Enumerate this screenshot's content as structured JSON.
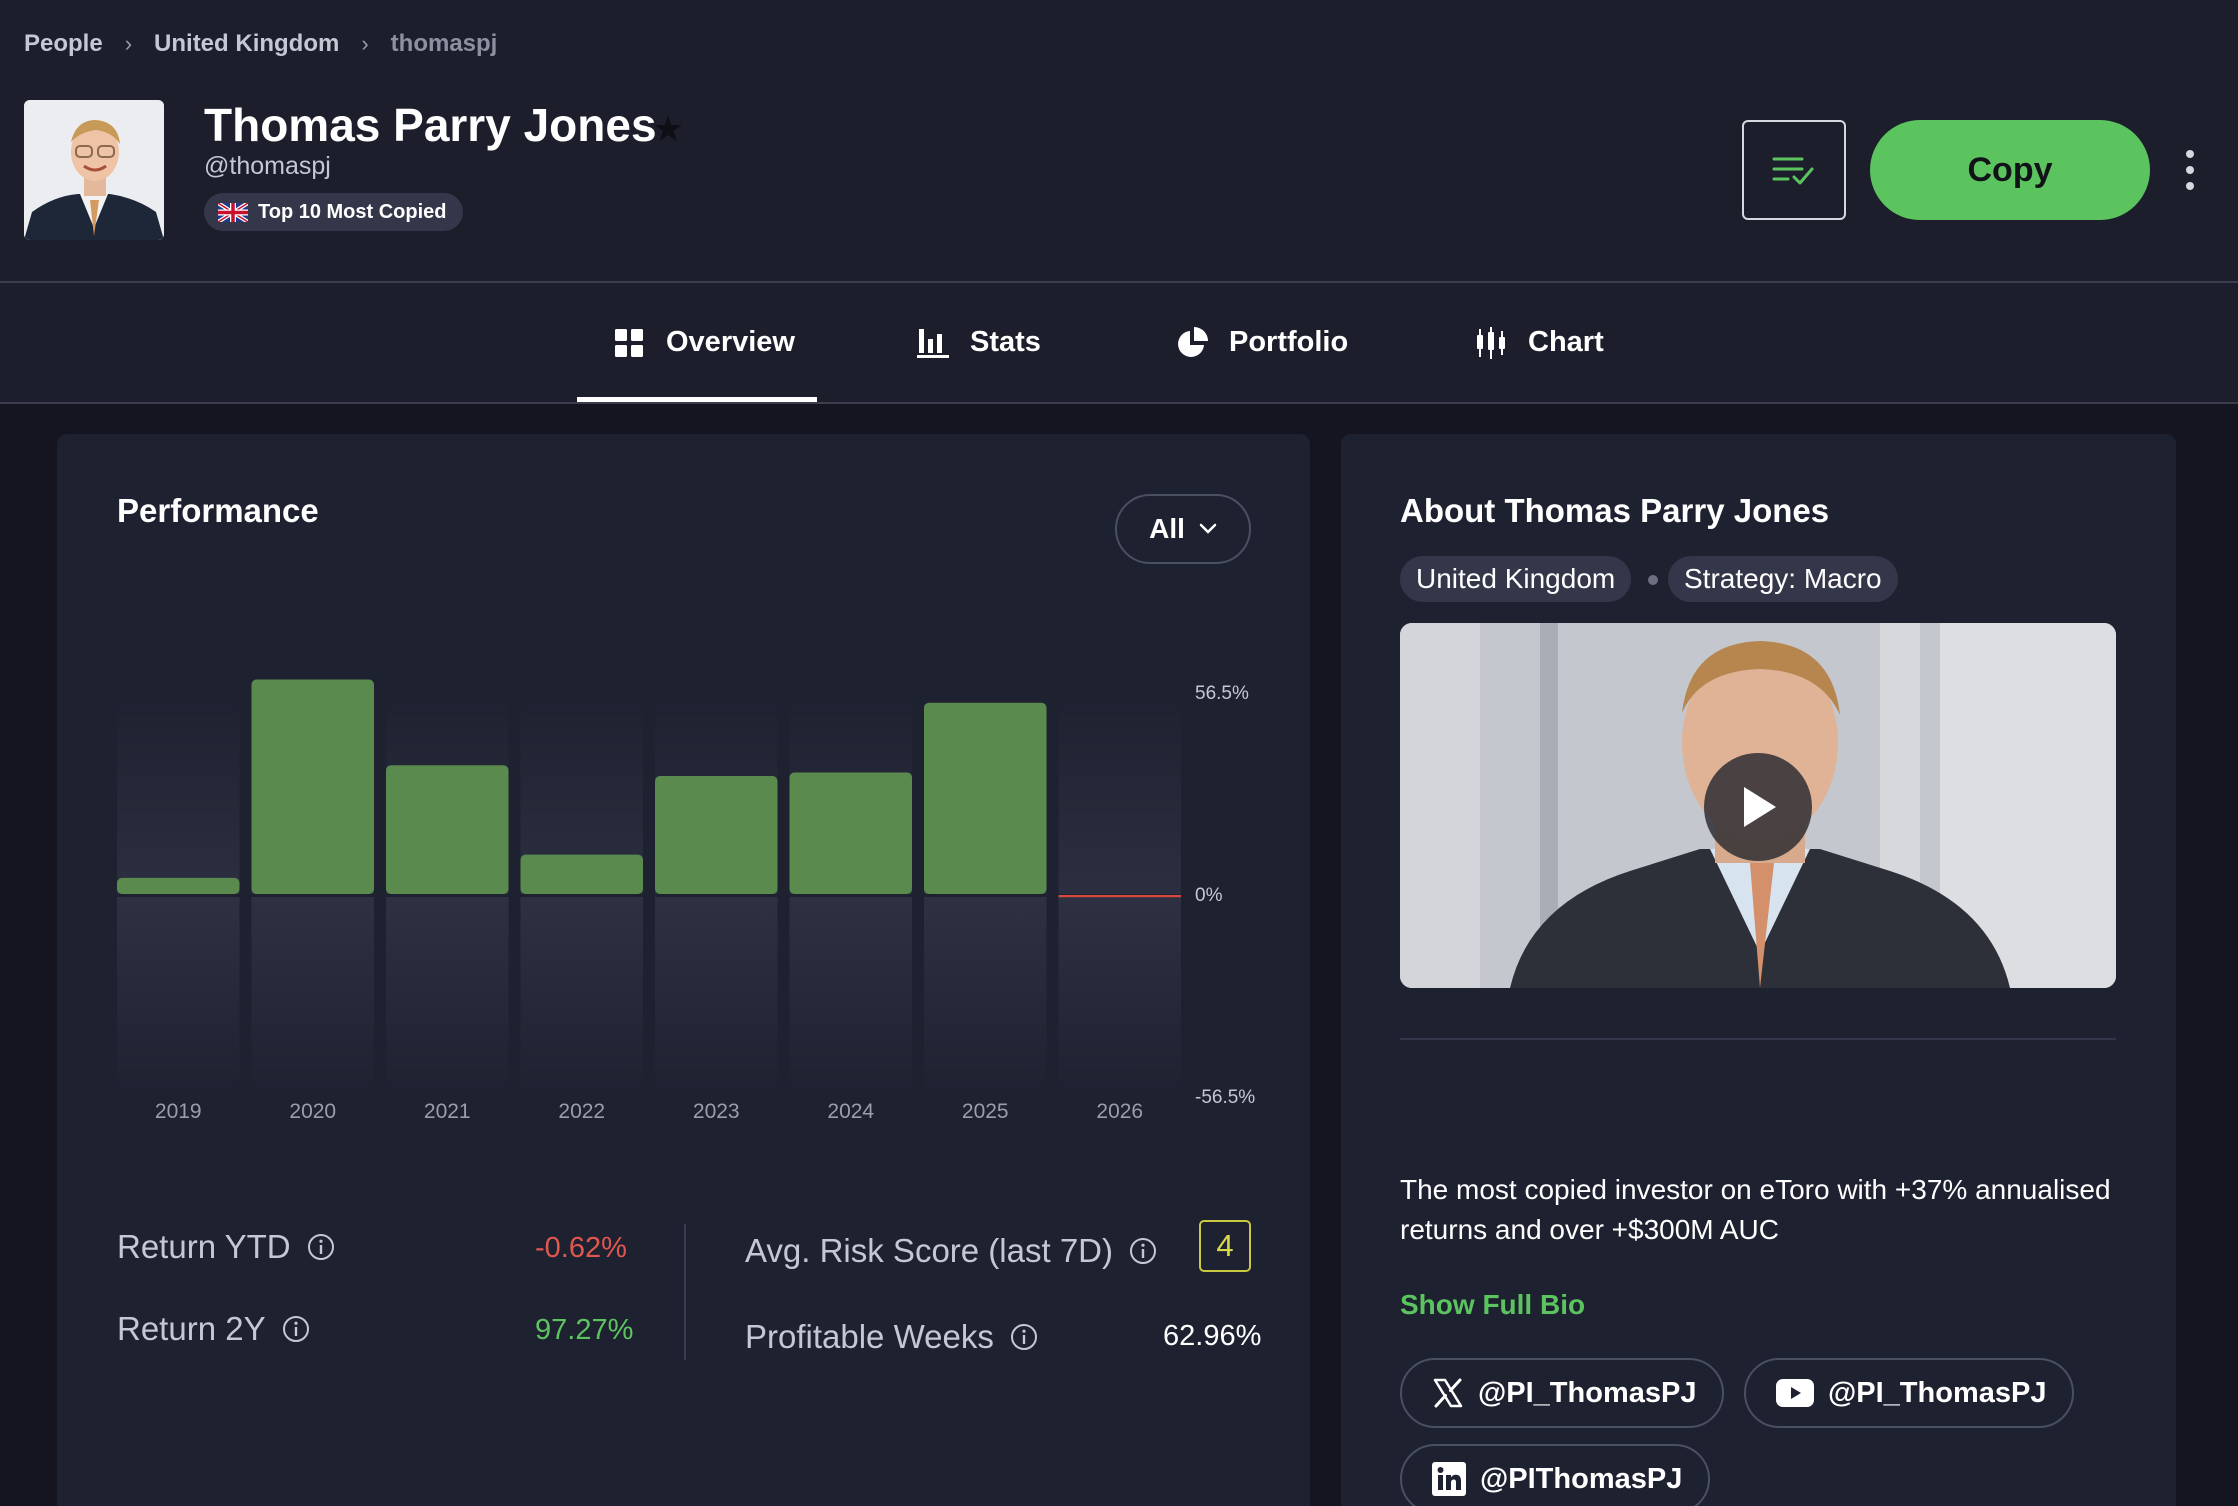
{
  "breadcrumb": {
    "items": [
      "People",
      "United Kingdom",
      "thomaspj"
    ]
  },
  "profile": {
    "name": "Thomas Parry Jones",
    "handle": "@thomaspj",
    "badge": "Top 10 Most Copied",
    "avatar_icon": "person-photo"
  },
  "actions": {
    "copy_label": "Copy",
    "watchlist_icon": "watchlist-check-icon",
    "more_icon": "kebab-menu-icon"
  },
  "tabs": [
    {
      "label": "Overview",
      "icon": "grid-icon",
      "active": true
    },
    {
      "label": "Stats",
      "icon": "bar-chart-icon",
      "active": false
    },
    {
      "label": "Portfolio",
      "icon": "pie-chart-icon",
      "active": false
    },
    {
      "label": "Chart",
      "icon": "candlestick-icon",
      "active": false
    }
  ],
  "performance": {
    "title": "Performance",
    "filter_value": "All",
    "metrics": {
      "return_ytd_label": "Return YTD",
      "return_ytd_value": "-0.62%",
      "return_2y_label": "Return 2Y",
      "return_2y_value": "97.27%",
      "risk_label": "Avg. Risk Score (last 7D)",
      "risk_value": "4",
      "profitable_weeks_label": "Profitable Weeks",
      "profitable_weeks_value": "62.96%"
    }
  },
  "chart_data": {
    "type": "bar",
    "categories": [
      "2019",
      "2020",
      "2021",
      "2022",
      "2023",
      "2024",
      "2025",
      "2026"
    ],
    "values": [
      4.5,
      60.0,
      36.0,
      11.0,
      33.0,
      34.0,
      53.5,
      -0.62
    ],
    "ytick_labels": [
      "56.5%",
      "0%",
      "-56.5%"
    ],
    "ylim": [
      -56.5,
      56.5
    ],
    "colors": {
      "positive": "#5a8a4e",
      "negative": "#d9483f"
    }
  },
  "about": {
    "title": "About Thomas Parry Jones",
    "country": "United Kingdom",
    "strategy": "Strategy: Macro",
    "bio": "The most copied investor on eToro with +37% annualised returns and over +$300M AUC",
    "show_bio_label": "Show Full Bio",
    "video_icon": "play-icon",
    "socials": [
      {
        "icon": "x-twitter-icon",
        "handle": "@PI_ThomasPJ"
      },
      {
        "icon": "youtube-icon",
        "handle": "@PI_ThomasPJ"
      },
      {
        "icon": "linkedin-icon",
        "handle": "@PIThomasPJ"
      }
    ]
  },
  "colors": {
    "accent": "#5bc45f",
    "background": "#1c1e2b",
    "card": "#1e2130",
    "negative": "#e0574f"
  }
}
